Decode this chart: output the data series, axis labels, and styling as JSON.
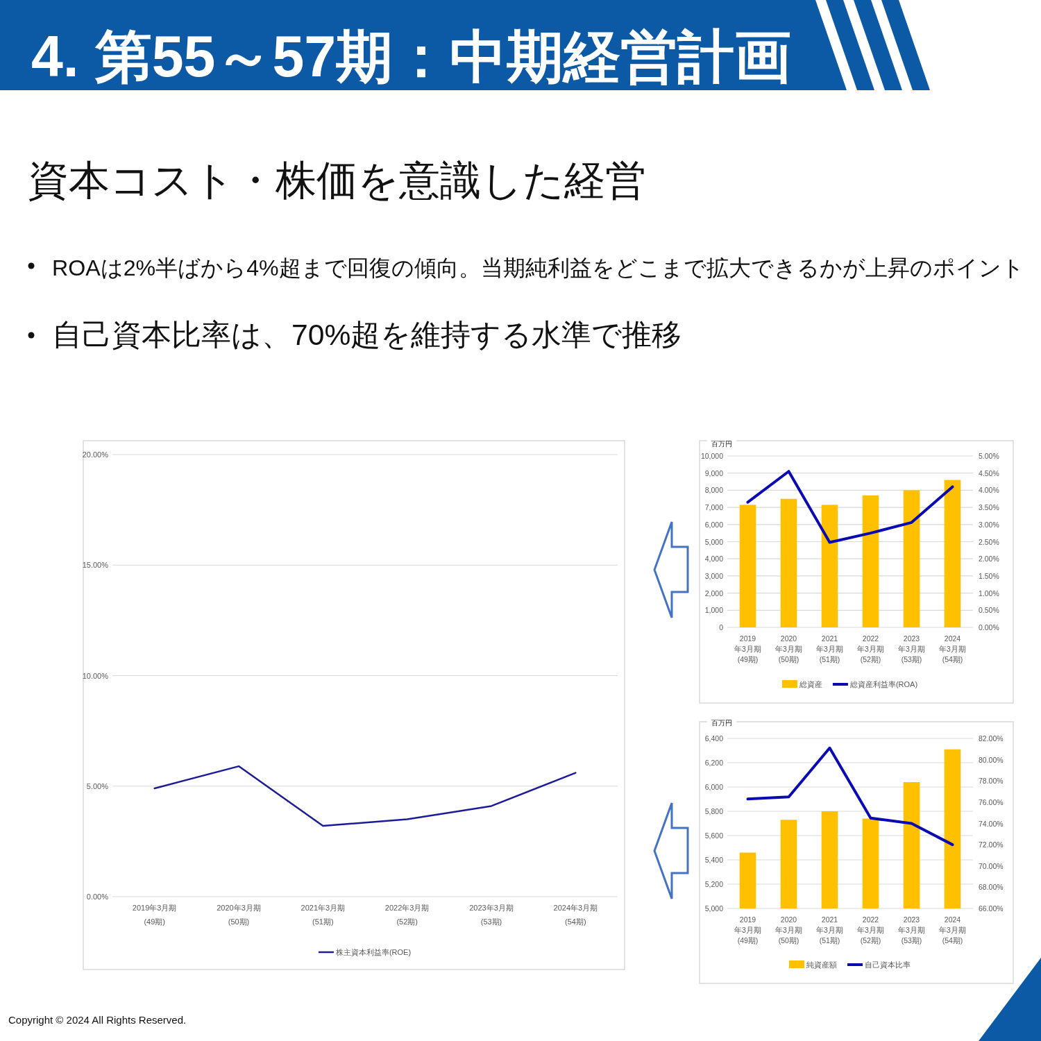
{
  "chart_data": [
    {
      "type": "other",
      "title": "4. 第55～57期：中期経営計画",
      "subtitle": "資本コスト・株価を意識した経営",
      "annotations": [
        "ROAは2%半ばから4%超まで回復の傾向。当期純利益をどこまで拡大できるかが上昇のポイント",
        "自己資本比率は、70%超を維持する水準で推移",
        "Copyright © 2024 All Rights Reserved."
      ]
    },
    {
      "type": "line",
      "categories": [
        "2019年3月期\n(49期)",
        "2020年3月期\n(50期)",
        "2021年3月期\n(51期)",
        "2022年3月期\n(52期)",
        "2023年3月期\n(53期)",
        "2024年3月期\n(54期)"
      ],
      "series": [
        {
          "name": "株主資本利益率(ROE)",
          "color": "#1c1c96",
          "values": [
            4.9,
            5.9,
            3.2,
            3.5,
            4.1,
            5.6
          ]
        }
      ],
      "ylim": [
        0,
        20
      ],
      "yticks": [
        {
          "value": 0,
          "label": "0.00%"
        },
        {
          "value": 5,
          "label": "5.00%"
        },
        {
          "value": 10,
          "label": "10.00%"
        },
        {
          "value": 15,
          "label": "15.00%"
        },
        {
          "value": 20,
          "label": "20.00%"
        }
      ],
      "grid": "y",
      "legend": "bottom"
    },
    {
      "type": "bar",
      "ylabel": "百万円",
      "categories": [
        "2019年3月期\n(49期)",
        "2020年3月期\n(50期)",
        "2021年3月期\n(51期)",
        "2022年3月期\n(52期)",
        "2023年3月期\n(53期)",
        "2024年3月期\n(54期)"
      ],
      "series": [
        {
          "name": "総資産",
          "color": "#ffc000",
          "values": [
            7150,
            7500,
            7150,
            7700,
            8000,
            8600
          ]
        },
        {
          "name": "総資産利益率(ROA)",
          "type": "line",
          "axis": "y2",
          "color": "#0a0ab4",
          "values": [
            3.65,
            4.55,
            2.48,
            2.75,
            3.06,
            4.1
          ]
        }
      ],
      "ylim": [
        0,
        10000
      ],
      "yticks": [
        0,
        {
          "value": 1000,
          "label": "1,000"
        },
        {
          "value": 2000,
          "label": "2,000"
        },
        {
          "value": 3000,
          "label": "3,000"
        },
        {
          "value": 4000,
          "label": "4,000"
        },
        {
          "value": 5000,
          "label": "5,000"
        },
        {
          "value": 6000,
          "label": "6,000"
        },
        {
          "value": 7000,
          "label": "7,000"
        },
        {
          "value": 8000,
          "label": "8,000"
        },
        {
          "value": 9000,
          "label": "9,000"
        },
        {
          "value": 10000,
          "label": "10,000"
        }
      ],
      "y2lim": [
        0,
        5
      ],
      "y2ticks": [
        {
          "value": 0,
          "label": "0.00%"
        },
        {
          "value": 0.5,
          "label": "0.50%"
        },
        {
          "value": 1,
          "label": "1.00%"
        },
        {
          "value": 1.5,
          "label": "1.50%"
        },
        {
          "value": 2,
          "label": "2.00%"
        },
        {
          "value": 2.5,
          "label": "2.50%"
        },
        {
          "value": 3,
          "label": "3.00%"
        },
        {
          "value": 3.5,
          "label": "3.50%"
        },
        {
          "value": 4,
          "label": "4.00%"
        },
        {
          "value": 4.5,
          "label": "4.50%"
        },
        {
          "value": 5,
          "label": "5.00%"
        }
      ],
      "grid": "y",
      "legend": "bottom"
    },
    {
      "type": "bar",
      "ylabel": "百万円",
      "categories": [
        "2019年3月期\n(49期)",
        "2020年3月期\n(50期)",
        "2021年3月期\n(51期)",
        "2022年3月期\n(52期)",
        "2023年3月期\n(53期)",
        "2024年3月期\n(54期)"
      ],
      "series": [
        {
          "name": "純資産額",
          "color": "#ffc000",
          "values": [
            5460,
            5730,
            5800,
            5740,
            6040,
            6310
          ]
        },
        {
          "name": "自己資本比率",
          "type": "line",
          "axis": "y2",
          "color": "#0a0ab4",
          "values": [
            76.3,
            76.5,
            81.1,
            74.5,
            74.0,
            72.0
          ]
        }
      ],
      "ylim": [
        5000,
        6400
      ],
      "yticks": [
        {
          "value": 5000,
          "label": "5,000"
        },
        {
          "value": 5200,
          "label": "5,200"
        },
        {
          "value": 5400,
          "label": "5,400"
        },
        {
          "value": 5600,
          "label": "5,600"
        },
        {
          "value": 5800,
          "label": "5,800"
        },
        {
          "value": 6000,
          "label": "6,000"
        },
        {
          "value": 6200,
          "label": "6,200"
        },
        {
          "value": 6400,
          "label": "6,400"
        }
      ],
      "y2lim": [
        66,
        82
      ],
      "y2ticks": [
        {
          "value": 66,
          "label": "66.00%"
        },
        {
          "value": 68,
          "label": "68.00%"
        },
        {
          "value": 70,
          "label": "70.00%"
        },
        {
          "value": 72,
          "label": "72.00%"
        },
        {
          "value": 74,
          "label": "74.00%"
        },
        {
          "value": 76,
          "label": "76.00%"
        },
        {
          "value": 78,
          "label": "78.00%"
        },
        {
          "value": 80,
          "label": "80.00%"
        },
        {
          "value": 82,
          "label": "82.00%"
        }
      ],
      "grid": "y",
      "legend": "bottom"
    }
  ]
}
